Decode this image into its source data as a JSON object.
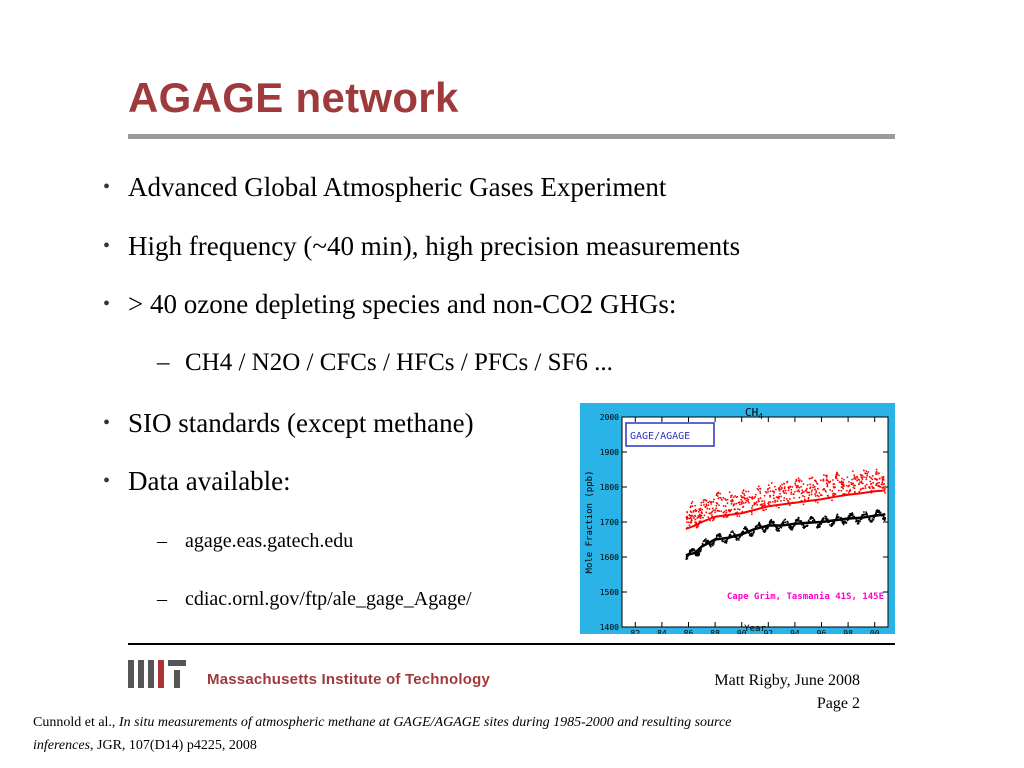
{
  "slide": {
    "title": "AGAGE network",
    "bullets": [
      "Advanced Global Atmospheric Gases Experiment",
      "High frequency (~40 min), high precision measurements",
      "> 40 ozone depleting species and non-CO2 GHGs:"
    ],
    "sub_bullet": "CH4 / N2O / CFCs / HFCs / PFCs / SF6 ...",
    "bullets2": [
      "SIO standards (except methane)",
      "Data available:"
    ],
    "links": [
      "agage.eas.gatech.edu",
      "cdiac.ornl.gov/ftp/ale_gage_Agage/"
    ],
    "dash": "–",
    "bullet_char": "•"
  },
  "footer": {
    "institution": "Massachusetts Institute of Technology",
    "author_date": "Matt Rigby, June 2008",
    "page": "Page 2",
    "citation_authors": "Cunnold et al., ",
    "citation_title": "In situ measurements of atmospheric methane at GAGE/AGAGE sites during 1985-2000 and resulting source inferences",
    "citation_rest": ", JGR, 107(D14) p4225, 2008"
  },
  "colors": {
    "title": "#9e3a3c",
    "chart_frame": "#29b3e6",
    "series_red": "#ff0000",
    "series_black": "#000000",
    "label_magenta": "#ff00cc",
    "legend_box": "#2a35c0"
  },
  "chart_data": {
    "type": "scatter",
    "title": "CH",
    "title_sub": "4",
    "legend_box": "GAGE/AGAGE",
    "annotation": "Cape Grim, Tasmania 41S, 145E",
    "xlabel": "Year",
    "ylabel": "Mole Fraction (ppb)",
    "xlim": [
      1981,
      2001
    ],
    "ylim": [
      1400,
      2000
    ],
    "x_ticks": [
      "82",
      "84",
      "86",
      "88",
      "90",
      "92",
      "94",
      "96",
      "98",
      "00"
    ],
    "y_ticks": [
      1400,
      1500,
      1600,
      1700,
      1800,
      1900,
      2000
    ],
    "series": [
      {
        "color": "#000000",
        "x": [
          1985.8,
          1986.5,
          1987,
          1988,
          1989,
          1990,
          1991,
          1992,
          1993,
          1994,
          1995,
          1996,
          1997,
          1998,
          1999,
          2000,
          2000.8
        ],
        "y": [
          1605,
          1612,
          1630,
          1650,
          1655,
          1665,
          1680,
          1690,
          1690,
          1695,
          1698,
          1700,
          1705,
          1710,
          1712,
          1718,
          1722
        ]
      },
      {
        "color": "#ff0000",
        "x": [
          1985.8,
          1986.5,
          1987,
          1988,
          1989,
          1990,
          1991,
          1992,
          1993,
          1994,
          1995,
          1996,
          1997,
          1998,
          1999,
          2000,
          2000.8
        ],
        "y": [
          1680,
          1690,
          1700,
          1715,
          1720,
          1725,
          1735,
          1745,
          1750,
          1755,
          1760,
          1765,
          1772,
          1778,
          1782,
          1788,
          1790
        ]
      }
    ]
  }
}
